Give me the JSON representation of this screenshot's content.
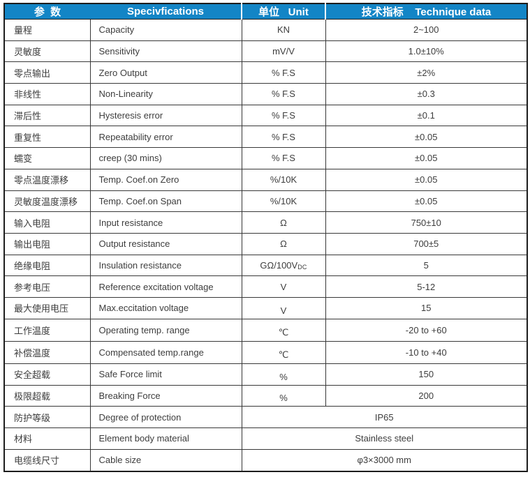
{
  "header": {
    "param": "参  数",
    "spec": "Specivfications",
    "unit": "单位   Unit",
    "data": "技术指标    Technique data"
  },
  "rows": [
    {
      "cn": "量程",
      "en": "Capacity",
      "unit": "KN",
      "value": "2~100"
    },
    {
      "cn": "灵敏度",
      "en": "Sensitivity",
      "unit": "mV/V",
      "value": "1.0±10%"
    },
    {
      "cn": "零点输出",
      "en": "Zero Output",
      "unit": "% F.S",
      "value": "±2%"
    },
    {
      "cn": "非线性",
      "en": "Non-Linearity",
      "unit": "% F.S",
      "value": "±0.3"
    },
    {
      "cn": "滞后性",
      "en": "Hysteresis error",
      "unit": "% F.S",
      "value": "±0.1"
    },
    {
      "cn": "重复性",
      "en": "Repeatability error",
      "unit": "% F.S",
      "value": "±0.05"
    },
    {
      "cn": "蠕变",
      "en": "creep (30 mins)",
      "unit": "% F.S",
      "value": "±0.05"
    },
    {
      "cn": "零点温度漂移",
      "en": "Temp. Coef.on Zero",
      "unit": "%/10K",
      "value": "±0.05"
    },
    {
      "cn": "灵敏度温度漂移",
      "en": "Temp. Coef.on Span",
      "unit": "%/10K",
      "value": "±0.05"
    },
    {
      "cn": "输入电阻",
      "en": "Input resistance",
      "unit": "Ω",
      "value": "750±10"
    },
    {
      "cn": "输出电阻",
      "en": "Output resistance",
      "unit": "Ω",
      "value": "700±5"
    },
    {
      "cn": "绝缘电阻",
      "en": "Insulation resistance",
      "unit": "GΩ/100V",
      "unit_sub": "DC",
      "value": "5"
    },
    {
      "cn": "参考电压",
      "en": "Reference excitation voltage",
      "unit": "V",
      "value": "5-12"
    },
    {
      "cn": "最大使用电压",
      "en": "Max.eccitation voltage",
      "unit": "V",
      "value": "15"
    },
    {
      "cn": "工作温度",
      "en": "Operating temp. range",
      "unit": "℃",
      "value": "-20 to +60"
    },
    {
      "cn": "补偿温度",
      "en": "Compensated temp.range",
      "unit": "℃",
      "value": "-10 to +40"
    },
    {
      "cn": "安全超载",
      "en": "Safe Force limit",
      "unit": "%",
      "value": "150"
    },
    {
      "cn": "极限超载",
      "en": "Breaking Force",
      "unit": "%",
      "value": "200"
    },
    {
      "cn": "防护等级",
      "en": "Degree of protection",
      "merged": true,
      "value": "IP65"
    },
    {
      "cn": "材料",
      "en": "Element body material",
      "merged": true,
      "value": "Stainless steel"
    },
    {
      "cn": "电缆线尺寸",
      "en": "Cable size",
      "merged": true,
      "value": "φ3×3000 mm"
    }
  ],
  "colors": {
    "header_bg": "#1385c6",
    "header_text": "#ffffff",
    "body_text": "#3d3d3d",
    "grid_line": "#383838",
    "outer_border": "#1d1d1d"
  }
}
